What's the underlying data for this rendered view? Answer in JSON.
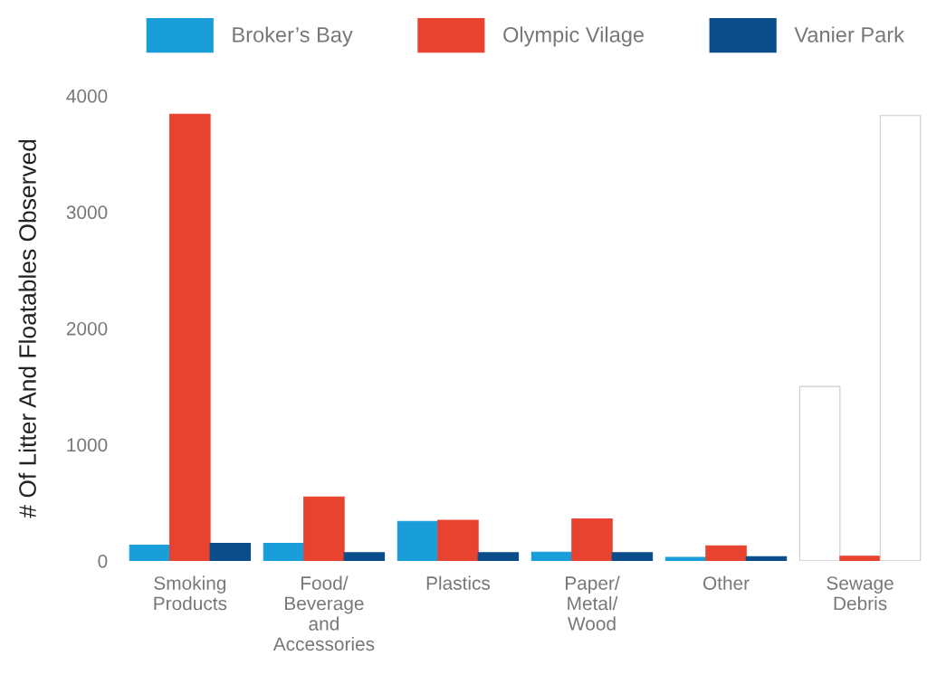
{
  "chart_data": {
    "type": "bar",
    "ylabel": "# Of Litter And Floatables Observed",
    "categories": [
      "Smoking\nProducts",
      "Food/\nBeverage\nand\nAccessories",
      "Plastics",
      "Paper/\nMetal/\nWood",
      "Other",
      "Sewage\nDebris"
    ],
    "series": [
      {
        "name": "Broker’s Bay",
        "color": "#1a9ed9",
        "colors": [
          "#1a9ed9",
          "#1a9ed9",
          "#1a9ed9",
          "#1a9ed9",
          "#1a9ed9",
          "#ffffff"
        ],
        "values": [
          135,
          150,
          340,
          75,
          30,
          1500
        ]
      },
      {
        "name": "Olympic Vilage",
        "color": "#e8432f",
        "values": [
          3840,
          550,
          350,
          360,
          130,
          40
        ]
      },
      {
        "name": "Vanier Park",
        "color": "#0b4d8a",
        "colors": [
          "#0b4d8a",
          "#0b4d8a",
          "#0b4d8a",
          "#0b4d8a",
          "#0b4d8a",
          "#ffffff"
        ],
        "values": [
          150,
          70,
          70,
          70,
          35,
          3830
        ]
      }
    ],
    "ylim": [
      0,
      4000
    ],
    "yticks": [
      0,
      1000,
      2000,
      3000,
      4000
    ],
    "grid": false,
    "legend": "top"
  }
}
